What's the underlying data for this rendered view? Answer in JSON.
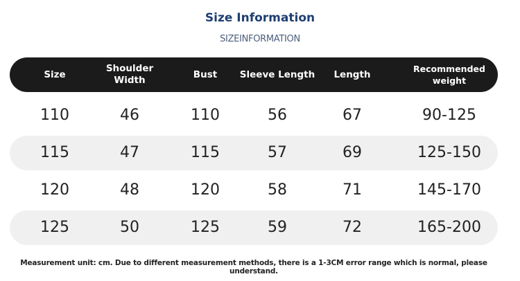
{
  "header": {
    "title": "Size Information",
    "subtitle": "SIZEINFORMATION"
  },
  "table": {
    "columns": [
      "Size",
      "Shoulder Width",
      "Bust",
      "Sleeve Length",
      "Length",
      "Recommended weight"
    ],
    "rows": [
      [
        "110",
        "46",
        "110",
        "56",
        "67",
        "90-125"
      ],
      [
        "115",
        "47",
        "115",
        "57",
        "69",
        "125-150"
      ],
      [
        "120",
        "48",
        "120",
        "58",
        "71",
        "145-170"
      ],
      [
        "125",
        "50",
        "125",
        "59",
        "72",
        "165-200"
      ]
    ]
  },
  "footer": {
    "note": "Measurement unit: cm. Due to different measurement methods, there is a 1-3CM error range which is normal, please understand."
  }
}
